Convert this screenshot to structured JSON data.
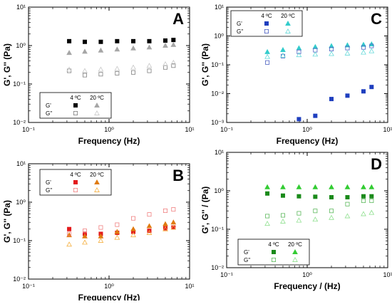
{
  "chart_data": [
    {
      "panel": "A",
      "type": "scatter",
      "xlabel": "Frequency (Hz)",
      "ylabel": "G', G'' (Pa)",
      "xscale": "log",
      "yscale": "log",
      "xlim": [
        0.1,
        10
      ],
      "ylim": [
        0.01,
        10
      ],
      "xticks": [
        "10⁻¹",
        "10⁰",
        "10¹"
      ],
      "yticks": [
        "10⁻²",
        "10⁻¹",
        "10⁰",
        "10¹"
      ],
      "legend": {
        "placement": "bottom-left",
        "headers": [
          "4 ºC",
          "20 ºC"
        ],
        "rows": [
          "G'",
          "G''"
        ]
      },
      "series": [
        {
          "legend_label": "G' 4 ºC",
          "color": "#000000",
          "marker": "square",
          "filled": true,
          "x": [
            0.32,
            0.5,
            0.79,
            1.26,
            2.0,
            3.16,
            5.0,
            6.3
          ],
          "y": [
            1.3,
            1.25,
            1.25,
            1.3,
            1.3,
            1.3,
            1.35,
            1.4
          ]
        },
        {
          "legend_label": "G' 20 ºC",
          "color": "#a6a6a6",
          "marker": "triangle",
          "filled": true,
          "x": [
            0.32,
            0.5,
            0.79,
            1.26,
            2.0,
            3.16,
            5.0,
            6.3
          ],
          "y": [
            0.65,
            0.7,
            0.75,
            0.8,
            0.85,
            0.9,
            1.0,
            1.05
          ]
        },
        {
          "legend_label": "G'' 4 ºC",
          "color": "#7f7f7f",
          "marker": "square",
          "filled": false,
          "x": [
            0.32,
            0.5,
            0.79,
            1.26,
            2.0,
            3.16,
            5.0,
            6.3
          ],
          "y": [
            0.22,
            0.17,
            0.18,
            0.19,
            0.2,
            0.22,
            0.27,
            0.3
          ]
        },
        {
          "legend_label": "G'' 20 ºC",
          "color": "#c8c8c8",
          "marker": "triangle",
          "filled": false,
          "x": [
            0.32,
            0.5,
            0.79,
            1.26,
            2.0,
            3.16,
            5.0,
            6.3
          ],
          "y": [
            0.24,
            0.22,
            0.24,
            0.25,
            0.27,
            0.3,
            0.33,
            0.36
          ]
        }
      ]
    },
    {
      "panel": "B",
      "type": "scatter",
      "xlabel": "Frequency (Hz)",
      "ylabel": "G', G'' (Pa)",
      "xscale": "log",
      "yscale": "log",
      "xlim": [
        0.1,
        10
      ],
      "ylim": [
        0.01,
        10
      ],
      "xticks": [
        "10⁻¹",
        "10⁰",
        "10¹"
      ],
      "yticks": [
        "10⁻²",
        "10⁻¹",
        "10⁰",
        "10¹"
      ],
      "legend": {
        "placement": "top-left",
        "headers": [
          "4 ºC",
          "20 ºC"
        ],
        "rows": [
          "G'",
          "G''"
        ]
      },
      "series": [
        {
          "legend_label": "G' 4 ºC",
          "color": "#e31a1c",
          "marker": "square",
          "filled": true,
          "x": [
            0.32,
            0.5,
            0.79,
            1.26,
            2.0,
            3.16,
            5.0,
            6.3
          ],
          "y": [
            0.2,
            0.15,
            0.15,
            0.16,
            0.17,
            0.18,
            0.21,
            0.22
          ]
        },
        {
          "legend_label": "G' 20 ºC",
          "color": "#e07b10",
          "marker": "triangle",
          "filled": true,
          "x": [
            0.32,
            0.5,
            0.79,
            1.26,
            2.0,
            3.16,
            5.0,
            6.3
          ],
          "y": [
            0.14,
            0.13,
            0.13,
            0.17,
            0.2,
            0.24,
            0.27,
            0.3
          ]
        },
        {
          "legend_label": "G'' 4 ºC",
          "color": "#f08080",
          "marker": "square",
          "filled": false,
          "x": [
            0.32,
            0.5,
            0.79,
            1.26,
            2.0,
            3.16,
            5.0,
            6.3
          ],
          "y": [
            0.15,
            0.18,
            0.22,
            0.26,
            0.38,
            0.48,
            0.6,
            0.65
          ]
        },
        {
          "legend_label": "G'' 20 ºC",
          "color": "#f5b041",
          "marker": "triangle",
          "filled": false,
          "x": [
            0.32,
            0.5,
            0.79,
            1.26,
            2.0,
            3.16,
            5.0,
            6.3
          ],
          "y": [
            0.08,
            0.09,
            0.1,
            0.12,
            0.14,
            0.16,
            0.2,
            0.22
          ]
        }
      ]
    },
    {
      "panel": "C",
      "type": "scatter",
      "xlabel": "Frequency (Hz)",
      "ylabel": "G', G'' (Pa)",
      "xscale": "log",
      "yscale": "log",
      "xlim": [
        0.1,
        10
      ],
      "ylim": [
        0.001,
        10
      ],
      "xticks": [
        "10⁻¹",
        "10⁰",
        "10¹"
      ],
      "yticks": [
        "10⁻³",
        "10⁻²",
        "10⁻¹",
        "10⁰",
        "10¹"
      ],
      "legend": {
        "placement": "top-left",
        "headers": [
          "4 ºC",
          "20 ºC"
        ],
        "rows": [
          "G'",
          "G''"
        ]
      },
      "series": [
        {
          "legend_label": "G' 4 ºC",
          "color": "#1f3fbf",
          "marker": "square",
          "filled": true,
          "x": [
            0.79,
            1.26,
            2.0,
            3.16,
            5.0,
            6.3
          ],
          "y": [
            0.0013,
            0.0017,
            0.0065,
            0.0085,
            0.012,
            0.017
          ]
        },
        {
          "legend_label": "G' 20 ºC",
          "color": "#33cccc",
          "marker": "triangle",
          "filled": true,
          "x": [
            0.32,
            0.5,
            0.79,
            1.26,
            2.0,
            3.16,
            5.0,
            6.3
          ],
          "y": [
            0.28,
            0.33,
            0.38,
            0.42,
            0.45,
            0.48,
            0.5,
            0.52
          ]
        },
        {
          "legend_label": "G'' 4 ºC",
          "color": "#4a5fc1",
          "marker": "square",
          "filled": false,
          "x": [
            0.32,
            0.5,
            0.79,
            1.26,
            2.0,
            3.16,
            5.0,
            6.3
          ],
          "y": [
            0.12,
            0.2,
            0.28,
            0.32,
            0.35,
            0.38,
            0.4,
            0.45
          ]
        },
        {
          "legend_label": "G'' 20 ºC",
          "color": "#66d9d9",
          "marker": "triangle",
          "filled": false,
          "x": [
            0.32,
            0.5,
            0.79,
            1.26,
            2.0,
            3.16,
            5.0,
            6.3
          ],
          "y": [
            0.19,
            0.21,
            0.22,
            0.23,
            0.24,
            0.25,
            0.27,
            0.3
          ]
        }
      ]
    },
    {
      "panel": "D",
      "type": "scatter",
      "xlabel": "Frequency / (Hz)",
      "ylabel": "G', G'' / (Pa)",
      "xscale": "log",
      "yscale": "log",
      "xlim": [
        0.1,
        10
      ],
      "ylim": [
        0.01,
        10
      ],
      "xticks": [
        "10⁻¹",
        "10⁰",
        "10¹"
      ],
      "yticks": [
        "10⁻²",
        "10⁻¹",
        "10⁰",
        "10¹"
      ],
      "legend": {
        "placement": "bottom-left",
        "headers": [
          "4 ºC",
          "20 ºC"
        ],
        "rows": [
          "G'",
          "G''"
        ]
      },
      "series": [
        {
          "legend_label": "G' 4 ºC",
          "color": "#1a8a1a",
          "marker": "square",
          "filled": true,
          "x": [
            0.32,
            0.5,
            0.79,
            1.26,
            2.0,
            3.16,
            5.0,
            6.3
          ],
          "y": [
            0.85,
            0.75,
            0.72,
            0.7,
            0.68,
            0.68,
            0.72,
            0.72
          ]
        },
        {
          "legend_label": "G' 20 ºC",
          "color": "#33cc33",
          "marker": "triangle",
          "filled": true,
          "x": [
            0.32,
            0.5,
            0.79,
            1.26,
            2.0,
            3.16,
            5.0,
            6.3
          ],
          "y": [
            1.25,
            1.25,
            1.25,
            1.25,
            1.25,
            1.25,
            1.25,
            1.25
          ]
        },
        {
          "legend_label": "G'' 4 ºC",
          "color": "#5cb85c",
          "marker": "square",
          "filled": false,
          "x": [
            0.32,
            0.5,
            0.79,
            1.26,
            2.0,
            3.16,
            5.0,
            6.3
          ],
          "y": [
            0.22,
            0.23,
            0.26,
            0.3,
            0.3,
            0.45,
            0.55,
            0.55
          ]
        },
        {
          "legend_label": "G'' 20 ºC",
          "color": "#90e090",
          "marker": "triangle",
          "filled": false,
          "x": [
            0.32,
            0.5,
            0.79,
            1.26,
            2.0,
            3.16,
            5.0,
            6.3
          ],
          "y": [
            0.14,
            0.16,
            0.17,
            0.18,
            0.2,
            0.22,
            0.25,
            0.27
          ]
        }
      ]
    }
  ]
}
